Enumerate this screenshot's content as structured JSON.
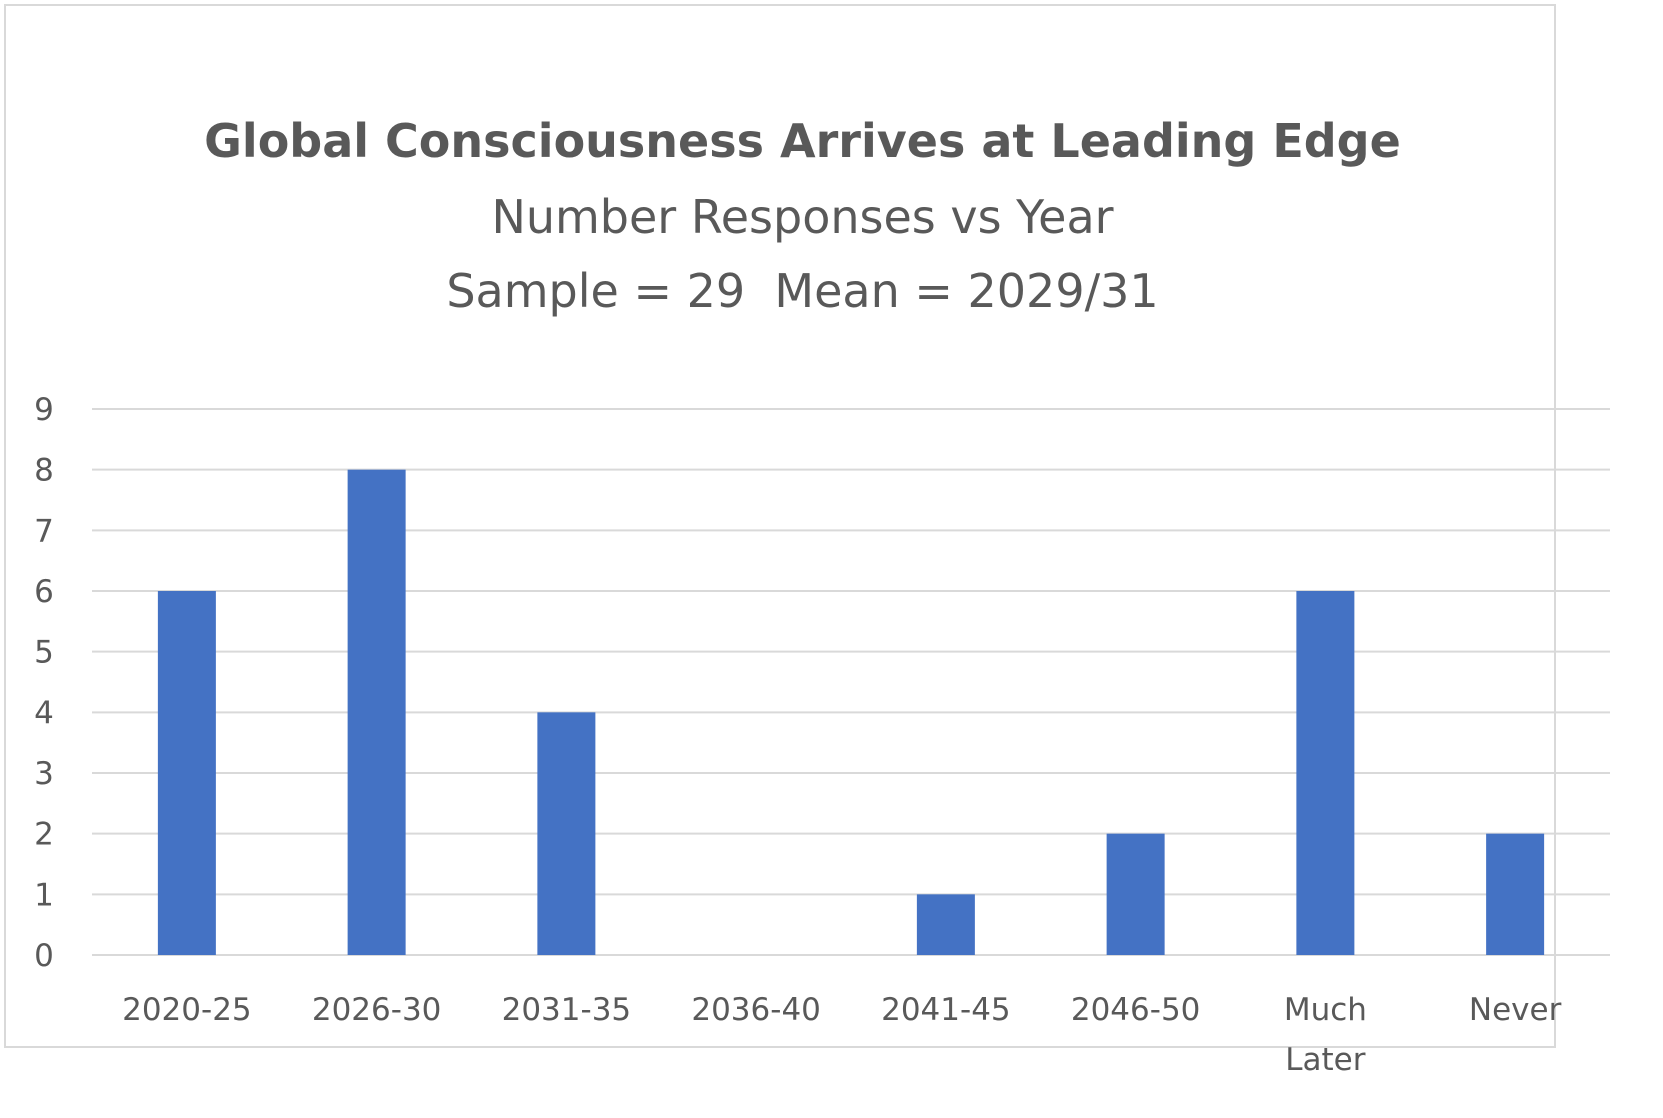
{
  "chart_data": {
    "type": "bar",
    "title": "Global Consciousness Arrives at Leading Edge",
    "subtitle": "Number Responses vs Year",
    "subtitle2": "Sample = 29  Mean = 2029/31",
    "categories": [
      "2020-25",
      "2026-30",
      "2031-35",
      "2036-40",
      "2041-45",
      "2046-50",
      "Much Later",
      "Never"
    ],
    "values": [
      6,
      8,
      4,
      0,
      1,
      2,
      6,
      2
    ],
    "ylim": [
      0,
      9
    ],
    "yticks": [
      0,
      1,
      2,
      3,
      4,
      5,
      6,
      7,
      8,
      9
    ],
    "grid": true,
    "legend": "none",
    "bar_color": "#4472c4",
    "grid_color": "#d9d9d9"
  }
}
